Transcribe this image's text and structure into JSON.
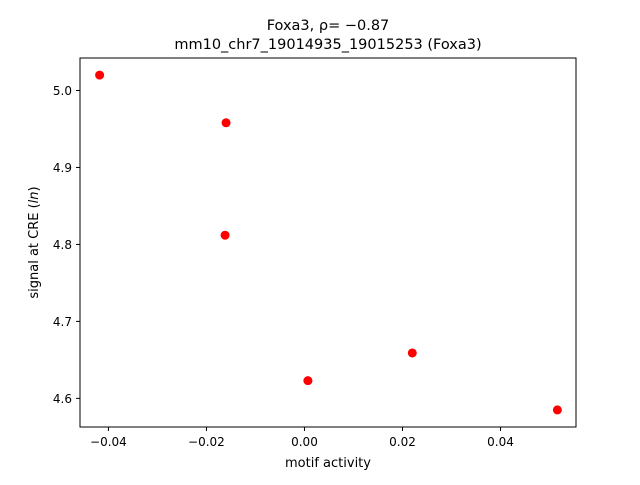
{
  "chart_data": {
    "type": "scatter",
    "title_line1": "Foxa3, ρ= −0.87",
    "title_line2": "mm10_chr7_19014935_19015253 (Foxa3)",
    "xlabel": "motif activity",
    "ylabel": "signal at CRE (ln)",
    "xlim": [
      -0.0458,
      0.0554
    ],
    "ylim": [
      4.5628,
      5.0422
    ],
    "xticks": [
      {
        "value": -0.04,
        "label": "−0.04"
      },
      {
        "value": -0.02,
        "label": "−0.02"
      },
      {
        "value": 0.0,
        "label": "0.00"
      },
      {
        "value": 0.02,
        "label": "0.02"
      },
      {
        "value": 0.04,
        "label": "0.04"
      }
    ],
    "yticks": [
      {
        "value": 4.6,
        "label": "4.6"
      },
      {
        "value": 4.7,
        "label": "4.7"
      },
      {
        "value": 4.8,
        "label": "4.8"
      },
      {
        "value": 4.9,
        "label": "4.9"
      },
      {
        "value": 5.0,
        "label": "5.0"
      }
    ],
    "points": [
      {
        "x": -0.0418,
        "y": 5.02
      },
      {
        "x": -0.016,
        "y": 4.958
      },
      {
        "x": -0.0162,
        "y": 4.812
      },
      {
        "x": 0.0007,
        "y": 4.623
      },
      {
        "x": 0.022,
        "y": 4.659
      },
      {
        "x": 0.0516,
        "y": 4.585
      }
    ],
    "marker_color": "#ff0000",
    "grid": false
  }
}
